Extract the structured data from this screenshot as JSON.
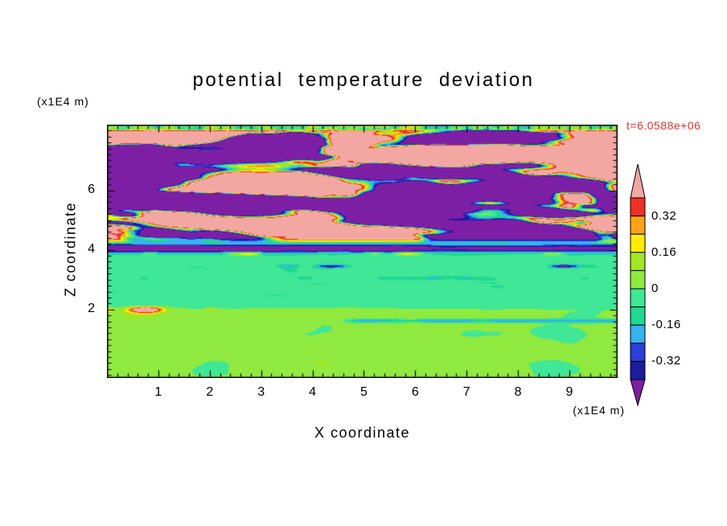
{
  "chart_data": {
    "type": "filled_contour",
    "title": "potential temperature deviation",
    "xlabel": "X coordinate",
    "ylabel": "Z coordinate",
    "x_axis_unit": "(x1E4 m)",
    "z_axis_unit": "(x1E4 m)",
    "time_annotation": "t=6.0588e+06",
    "x_ticks": [
      1,
      2,
      3,
      4,
      5,
      6,
      7,
      8,
      9
    ],
    "z_ticks": [
      2,
      4,
      6
    ],
    "x_range": [
      0,
      9.94
    ],
    "z_range": [
      -0.3,
      8.2
    ],
    "x_minor_step": 0.2,
    "z_minor_step": 0.2,
    "grid": false,
    "levels": [
      -0.4,
      -0.32,
      -0.24,
      -0.16,
      -0.08,
      0,
      0.08,
      0.16,
      0.24,
      0.32,
      0.4
    ],
    "colorbar_labels": [
      {
        "value": 0.32,
        "label": "0.32"
      },
      {
        "value": 0.16,
        "label": "0.16"
      },
      {
        "value": 0,
        "label": "0"
      },
      {
        "value": -0.16,
        "label": "-0.16"
      },
      {
        "value": -0.32,
        "label": "-0.32"
      }
    ],
    "colors": {
      "under": "#7D1FA4",
      "over": "#F3A7A3",
      "bands": [
        "#1C1C9C",
        "#2B3FD8",
        "#35B3F0",
        "#20D891",
        "#3FE796",
        "#8FE93E",
        "#A2E626",
        "#FFEC00",
        "#FFA119",
        "#EF3125"
      ],
      "axis": "#000000",
      "time_text": "#E0352B",
      "background": "#FFFFFF"
    },
    "field": {
      "description": "Stratified turbulence: alternating strong positive (pink) and negative (purple) wave layers above z=4.3 with thin rainbow contour fringes, dark negative band near z=4.05, near-zero spring-green layer for 2<z<4.3 with thin dark streak lines, slightly positive chartreuse layer below z=2 with green blobs, warm spots near z=2 and a cyan line at z=1.62, speckled row at the very top.",
      "seed": 11,
      "upper_layer": {
        "z_start": 4.3,
        "amplitude": 0.6,
        "x_scale": 0.5,
        "z_scale": 1.8,
        "sharpness": 22
      },
      "negative_band": {
        "z_center": 4.05,
        "z_width": 0.13,
        "strength": -0.62
      },
      "middle_layer": {
        "z_min": 2.05,
        "z_max": 4.3,
        "base_value": -0.06,
        "streak_lines_z": [
          3.45,
          3.05
        ],
        "warm_speck_z": 3.87
      },
      "lower_layer": {
        "z_max": 2.05,
        "base_value": 0.045,
        "blob_amplitude": 0.16,
        "warm_spot": {
          "x": 0.75,
          "z": 2.03
        },
        "cyan_line_z": 1.62
      },
      "top_speckle_z": 7.95
    }
  }
}
